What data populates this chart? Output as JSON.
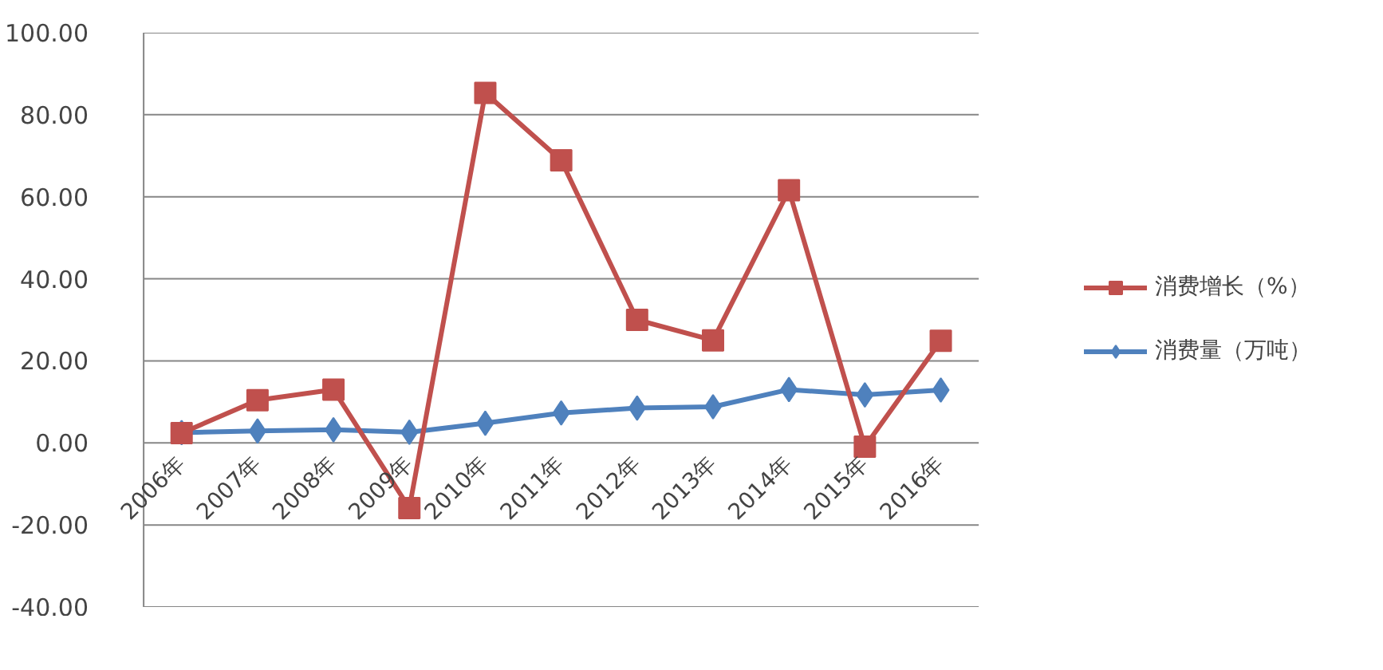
{
  "chart_data": {
    "type": "line",
    "categories": [
      "2006年",
      "2007年",
      "2008年",
      "2009年",
      "2010年",
      "2011年",
      "2012年",
      "2013年",
      "2014年",
      "2015年",
      "2016年"
    ],
    "series": [
      {
        "name": "消费增长（%）",
        "color": "#c0504d",
        "marker": "square",
        "values": [
          2.4,
          10.4,
          13.0,
          -15.9,
          85.3,
          68.9,
          30,
          25,
          61.6,
          -0.9,
          24.9
        ]
      },
      {
        "name": "消费量（万吨）",
        "color": "#4f81bd",
        "marker": "diamond",
        "values": [
          2.5,
          2.9,
          3.2,
          2.6,
          4.8,
          7.3,
          8.5,
          8.8,
          13,
          11.7,
          12.9
        ]
      }
    ],
    "ylim": [
      -40,
      100
    ],
    "yticks": [
      {
        "value": -40,
        "label": "-40.00"
      },
      {
        "value": -20,
        "label": "-20.00"
      },
      {
        "value": 0,
        "label": "0.00"
      },
      {
        "value": 20,
        "label": "20.00"
      },
      {
        "value": 40,
        "label": "40.00"
      },
      {
        "value": 60,
        "label": "60.00"
      },
      {
        "value": 80,
        "label": "80.00"
      },
      {
        "value": 100,
        "label": "100.00"
      }
    ],
    "grid": "y",
    "legend": "right",
    "line_style": "solid"
  }
}
